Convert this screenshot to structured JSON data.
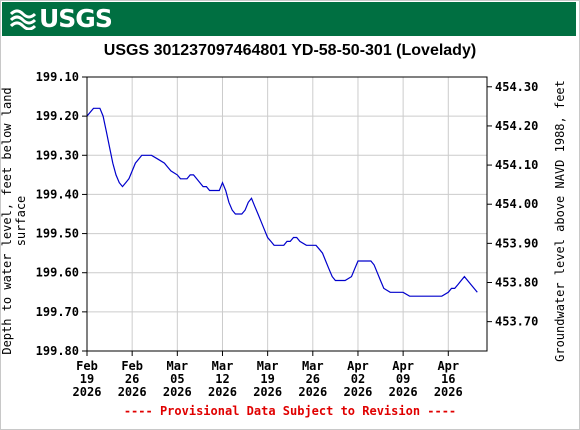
{
  "header": {
    "logo_text": "USGS",
    "logo_icon": "usgs-wave-icon",
    "banner_color": "#006f41"
  },
  "chart_data": {
    "type": "line",
    "title": "USGS 301237097464801 YD-58-50-301 (Lovelady)",
    "ylabel_left_line1": "Depth to water level, feet below land",
    "ylabel_left_line2": "surface",
    "ylabel_right": "Groundwater level above NAVD 1988, feet",
    "footer": "---- Provisional Data Subject to Revision ----",
    "line_color": "#0000cc",
    "grid": true,
    "ylim_left": [
      199.1,
      199.8
    ],
    "y_reversed": true,
    "ylim_right": [
      453.7,
      454.3
    ],
    "xlim": [
      "2026-02-19",
      "2026-04-22"
    ],
    "left_ticks": [
      "199.10",
      "199.20",
      "199.30",
      "199.40",
      "199.50",
      "199.60",
      "199.70",
      "199.80"
    ],
    "right_ticks": [
      "454.30",
      "454.20",
      "454.10",
      "454.00",
      "453.90",
      "453.80",
      "453.70"
    ],
    "right_tick_values": [
      454.3,
      454.2,
      454.1,
      454.0,
      453.9,
      453.8,
      453.7
    ],
    "x_ticks": [
      {
        "date": "2026-02-19",
        "month": "Feb",
        "day": "19",
        "year": "2026"
      },
      {
        "date": "2026-02-26",
        "month": "Feb",
        "day": "26",
        "year": "2026"
      },
      {
        "date": "2026-03-05",
        "month": "Mar",
        "day": "05",
        "year": "2026"
      },
      {
        "date": "2026-03-12",
        "month": "Mar",
        "day": "12",
        "year": "2026"
      },
      {
        "date": "2026-03-19",
        "month": "Mar",
        "day": "19",
        "year": "2026"
      },
      {
        "date": "2026-03-26",
        "month": "Mar",
        "day": "26",
        "year": "2026"
      },
      {
        "date": "2026-04-02",
        "month": "Apr",
        "day": "02",
        "year": "2026"
      },
      {
        "date": "2026-04-09",
        "month": "Apr",
        "day": "09",
        "year": "2026"
      },
      {
        "date": "2026-04-16",
        "month": "Apr",
        "day": "16",
        "year": "2026"
      }
    ],
    "series": [
      {
        "x": [
          "2026-02-19T00:00",
          "2026-02-19T12:00",
          "2026-02-20T00:00",
          "2026-02-20T12:00",
          "2026-02-21T00:00",
          "2026-02-21T12:00",
          "2026-02-22T00:00",
          "2026-02-22T12:00",
          "2026-02-23T00:00",
          "2026-02-23T12:00",
          "2026-02-24T00:00",
          "2026-02-24T12:00",
          "2026-02-25T00:00",
          "2026-02-25T12:00",
          "2026-02-26T00:00",
          "2026-02-26T12:00",
          "2026-02-27T00:00",
          "2026-02-27T12:00",
          "2026-02-28T00:00",
          "2026-03-01T00:00",
          "2026-03-02T00:00",
          "2026-03-03T00:00",
          "2026-03-03T12:00",
          "2026-03-04T00:00",
          "2026-03-05T00:00",
          "2026-03-05T12:00",
          "2026-03-06T00:00",
          "2026-03-06T12:00",
          "2026-03-07T00:00",
          "2026-03-07T12:00",
          "2026-03-08T00:00",
          "2026-03-09T00:00",
          "2026-03-09T12:00",
          "2026-03-10T00:00",
          "2026-03-10T12:00",
          "2026-03-11T00:00",
          "2026-03-11T12:00",
          "2026-03-12T00:00",
          "2026-03-12T12:00",
          "2026-03-13T00:00",
          "2026-03-13T12:00",
          "2026-03-14T00:00",
          "2026-03-14T12:00",
          "2026-03-15T00:00",
          "2026-03-15T12:00",
          "2026-03-16T00:00",
          "2026-03-16T12:00",
          "2026-03-17T00:00",
          "2026-03-17T12:00",
          "2026-03-18T00:00",
          "2026-03-18T12:00",
          "2026-03-19T00:00",
          "2026-03-19T12:00",
          "2026-03-20T00:00",
          "2026-03-20T12:00",
          "2026-03-21T00:00",
          "2026-03-21T12:00",
          "2026-03-22T00:00",
          "2026-03-22T12:00",
          "2026-03-23T00:00",
          "2026-03-23T12:00",
          "2026-03-24T00:00",
          "2026-03-25T00:00",
          "2026-03-26T00:00",
          "2026-03-26T12:00",
          "2026-03-27T00:00",
          "2026-03-27T12:00",
          "2026-03-28T00:00",
          "2026-03-28T12:00",
          "2026-03-29T00:00",
          "2026-03-29T12:00",
          "2026-03-30T00:00",
          "2026-03-31T00:00",
          "2026-04-01T00:00",
          "2026-04-01T12:00",
          "2026-04-02T00:00",
          "2026-04-02T12:00",
          "2026-04-03T00:00",
          "2026-04-03T12:00",
          "2026-04-04T00:00",
          "2026-04-04T12:00",
          "2026-04-05T00:00",
          "2026-04-05T12:00",
          "2026-04-06T00:00",
          "2026-04-07T00:00",
          "2026-04-08T00:00",
          "2026-04-09T00:00",
          "2026-04-10T00:00",
          "2026-04-11T00:00",
          "2026-04-12T00:00",
          "2026-04-13T00:00",
          "2026-04-14T00:00",
          "2026-04-15T00:00",
          "2026-04-16T00:00",
          "2026-04-16T12:00",
          "2026-04-17T00:00",
          "2026-04-17T12:00",
          "2026-04-18T00:00",
          "2026-04-18T12:00",
          "2026-04-19T00:00",
          "2026-04-19T12:00",
          "2026-04-20T00:00",
          "2026-04-20T12:00"
        ],
        "y": [
          199.2,
          199.19,
          199.18,
          199.18,
          199.18,
          199.2,
          199.24,
          199.28,
          199.32,
          199.35,
          199.37,
          199.38,
          199.37,
          199.36,
          199.34,
          199.32,
          199.31,
          199.3,
          199.3,
          199.3,
          199.31,
          199.32,
          199.33,
          199.34,
          199.35,
          199.36,
          199.36,
          199.36,
          199.35,
          199.35,
          199.36,
          199.38,
          199.38,
          199.39,
          199.39,
          199.39,
          199.39,
          199.37,
          199.39,
          199.42,
          199.44,
          199.45,
          199.45,
          199.45,
          199.44,
          199.42,
          199.41,
          199.43,
          199.45,
          199.47,
          199.49,
          199.51,
          199.52,
          199.53,
          199.53,
          199.53,
          199.53,
          199.52,
          199.52,
          199.51,
          199.51,
          199.52,
          199.53,
          199.53,
          199.53,
          199.54,
          199.55,
          199.57,
          199.59,
          199.61,
          199.62,
          199.62,
          199.62,
          199.61,
          199.59,
          199.57,
          199.57,
          199.57,
          199.57,
          199.57,
          199.58,
          199.6,
          199.62,
          199.64,
          199.65,
          199.65,
          199.65,
          199.66,
          199.66,
          199.66,
          199.66,
          199.66,
          199.66,
          199.65,
          199.64,
          199.64,
          199.63,
          199.62,
          199.61,
          199.62,
          199.63,
          199.64,
          199.65
        ]
      }
    ]
  }
}
